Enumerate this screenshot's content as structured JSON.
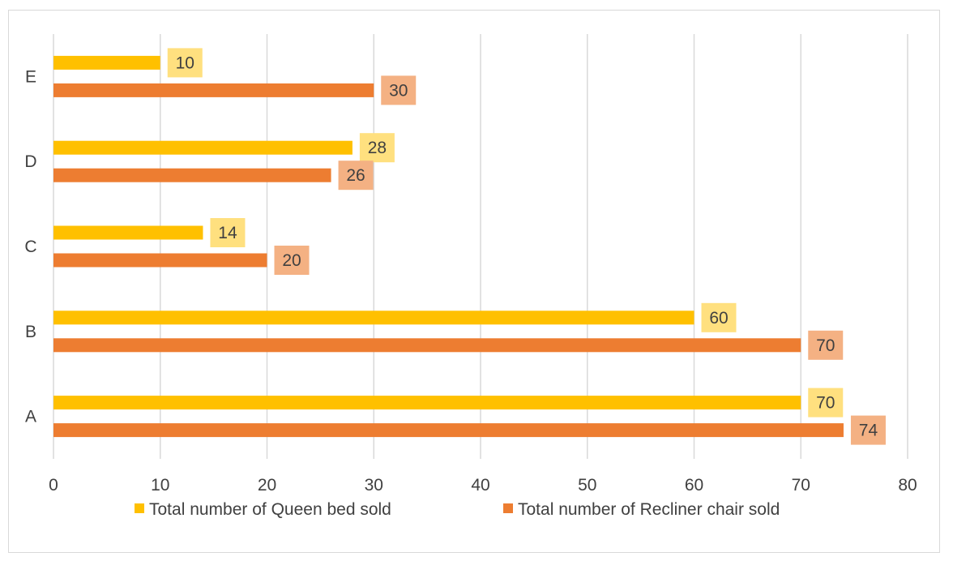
{
  "chart_data": {
    "type": "bar",
    "orientation": "horizontal",
    "categories": [
      "A",
      "B",
      "C",
      "D",
      "E"
    ],
    "series": [
      {
        "name": "Total number of Queen bed sold",
        "values": [
          70,
          60,
          14,
          28,
          10
        ],
        "color": "#FFC000",
        "label_bg": "#FFE07F"
      },
      {
        "name": "Total number of Recliner chair sold",
        "values": [
          74,
          70,
          20,
          26,
          30
        ],
        "color": "#ED7D31",
        "label_bg": "#F4B183"
      }
    ],
    "xlim": [
      0,
      80
    ],
    "x_ticks": [
      "0",
      "10",
      "20",
      "30",
      "40",
      "50",
      "60",
      "70",
      "80"
    ],
    "grid": true,
    "legend_position": "bottom",
    "title": "",
    "xlabel": "",
    "ylabel": ""
  }
}
